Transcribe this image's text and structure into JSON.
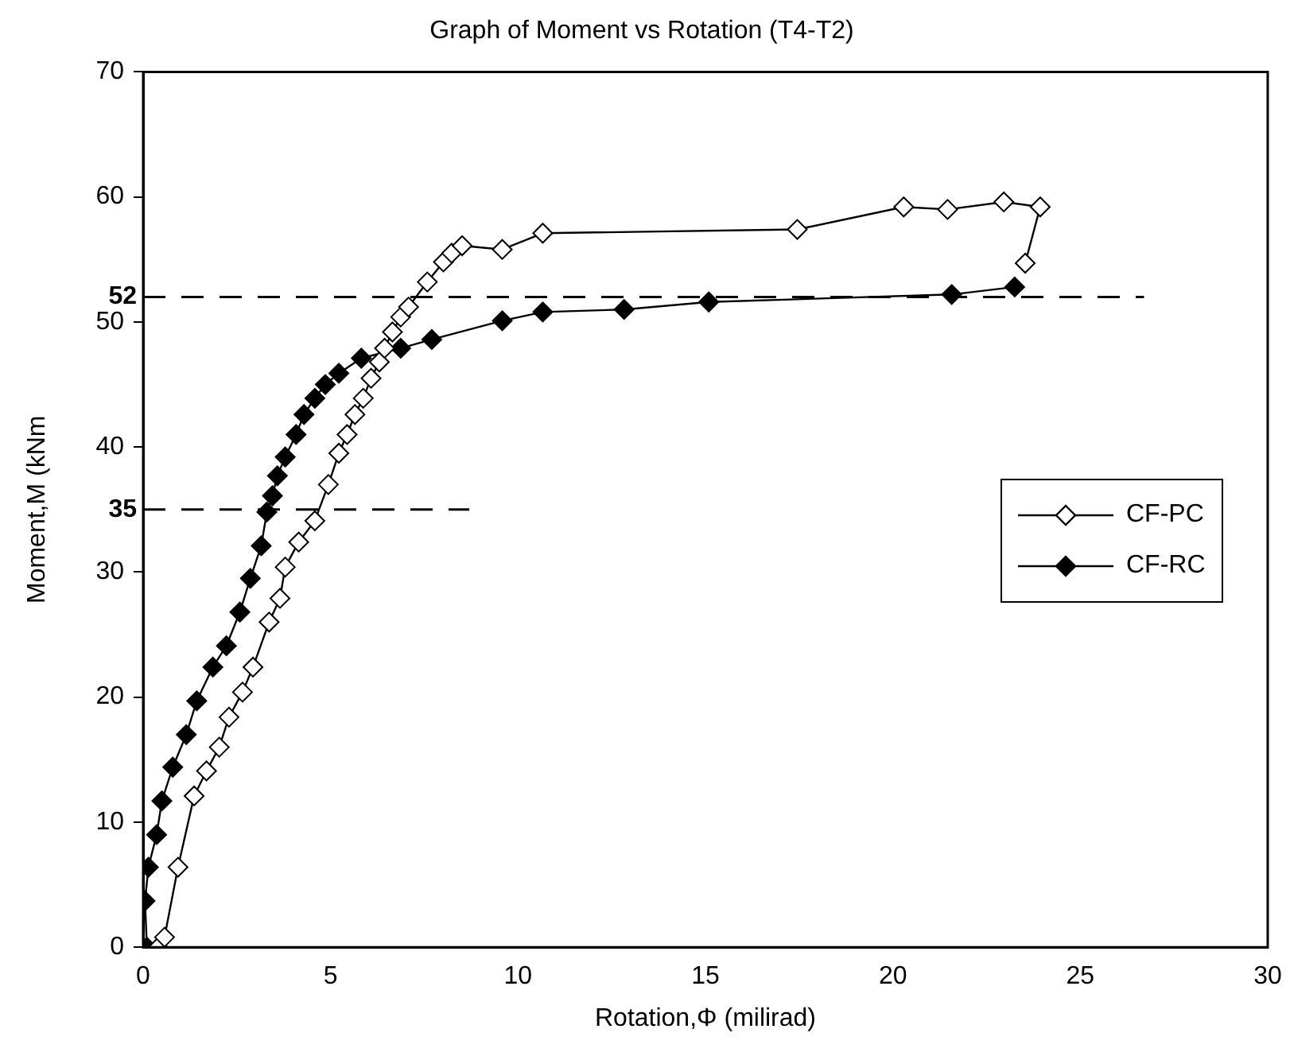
{
  "chart_data": {
    "type": "line",
    "title": "Graph of Moment vs Rotation (T4-T2)",
    "xlabel": "Rotation,Φ (milirad)",
    "ylabel": "Moment,M (kNm",
    "xlim": [
      0,
      30
    ],
    "xticks": [
      0,
      5,
      10,
      15,
      20,
      25,
      30
    ],
    "ylim": [
      0,
      70
    ],
    "yticks": [
      0,
      10,
      20,
      30,
      40,
      50,
      60,
      70
    ],
    "grid": false,
    "legend": "right",
    "marker": "diamond",
    "line_style": "solid",
    "ref_lines": [
      {
        "axis": "y",
        "value": 52,
        "label": "52",
        "line_style": "dashed",
        "color": "#000000"
      },
      {
        "axis": "y",
        "value": 35,
        "label": "35",
        "line_style": "dashed",
        "color": "#000000"
      }
    ],
    "series": [
      {
        "name": "CF-PC",
        "color": "#000000",
        "x": [
          0.4,
          0.57,
          0.93,
          1.36,
          1.69,
          2.03,
          2.29,
          2.65,
          2.93,
          3.36,
          3.65,
          3.79,
          4.15,
          4.58,
          4.94,
          5.22,
          5.44,
          5.65,
          5.87,
          6.08,
          6.3,
          6.44,
          6.65,
          6.87,
          7.08,
          7.58,
          8.01,
          8.23,
          8.51,
          9.58,
          10.66,
          17.45,
          20.29,
          21.46,
          22.96,
          23.93,
          23.53
        ],
        "values": [
          0,
          0.8,
          6.4,
          12.1,
          14.1,
          16,
          18.4,
          20.4,
          22.4,
          26,
          27.9,
          30.4,
          32.4,
          34.1,
          37,
          39.5,
          41,
          42.6,
          43.9,
          45.5,
          46.8,
          47.9,
          49.2,
          50.4,
          51.2,
          53.2,
          54.8,
          55.5,
          56.1,
          55.8,
          57.1,
          57.4,
          59.2,
          59,
          59.6,
          59.2,
          54.7
        ]
      },
      {
        "name": "CF-RC",
        "color": "#000000",
        "x": [
          0.1,
          0.05,
          0.14,
          0.36,
          0.5,
          0.79,
          1.15,
          1.43,
          1.86,
          2.22,
          2.58,
          2.86,
          3.15,
          3.3,
          3.45,
          3.58,
          3.79,
          4.08,
          4.29,
          4.58,
          4.86,
          5.22,
          5.82,
          6.87,
          7.7,
          9.58,
          10.66,
          12.83,
          15.09,
          21.57,
          23.25
        ],
        "values": [
          0,
          3.7,
          6.4,
          9,
          11.7,
          14.4,
          17,
          19.7,
          22.4,
          24.1,
          26.8,
          29.5,
          32.1,
          34.8,
          36.1,
          37.7,
          39.2,
          41,
          42.6,
          43.9,
          45,
          45.9,
          47.1,
          47.9,
          48.6,
          50.1,
          50.8,
          51,
          51.6,
          52.2,
          52.8
        ]
      }
    ]
  }
}
